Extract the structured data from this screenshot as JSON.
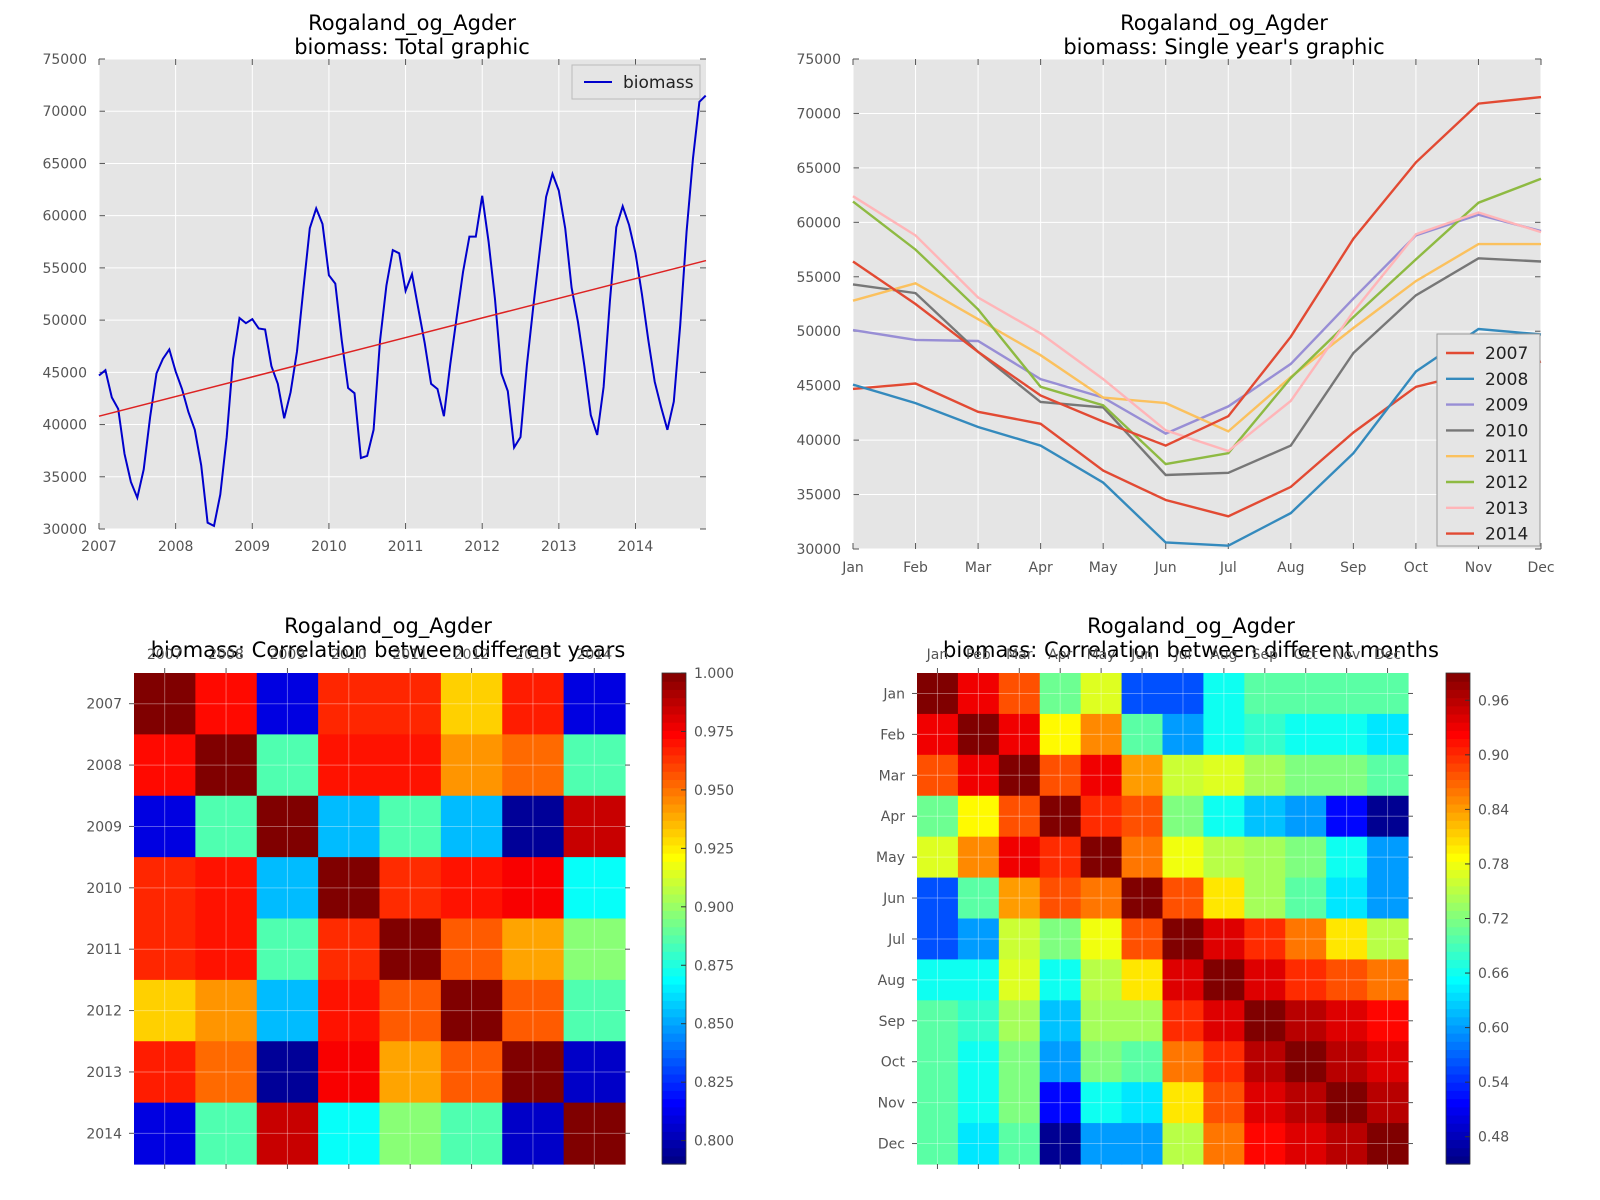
{
  "chart_data": [
    {
      "type": "line",
      "title": "Rogaland_og_Agder",
      "subtitle": "biomass: Total graphic",
      "xlim": [
        2007,
        2014.92
      ],
      "ylim": [
        30000,
        75000
      ],
      "x_ticks": [
        "2007",
        "2008",
        "2009",
        "2010",
        "2011",
        "2012",
        "2013",
        "2014"
      ],
      "y_ticks": [
        "30000",
        "35000",
        "40000",
        "45000",
        "50000",
        "55000",
        "60000",
        "65000",
        "70000",
        "75000"
      ],
      "grid": true,
      "legend_position": "top-right",
      "series": [
        {
          "name": "biomass",
          "color": "#0000cc",
          "x_start": 2007,
          "x_step_months": 1,
          "values": [
            44700,
            45200,
            42600,
            41500,
            37200,
            34500,
            33000,
            35700,
            40700,
            44900,
            46300,
            47200,
            45100,
            43400,
            41200,
            39500,
            36100,
            30600,
            30300,
            33300,
            38800,
            46300,
            50200,
            49700,
            50100,
            49200,
            49100,
            45600,
            43900,
            40600,
            43100,
            47000,
            53000,
            58800,
            60700,
            59200,
            54300,
            53500,
            48100,
            43500,
            43000,
            36800,
            37000,
            39500,
            48000,
            53300,
            56700,
            56400,
            52800,
            54400,
            51100,
            47800,
            43900,
            43400,
            40800,
            45800,
            50300,
            54600,
            58000,
            58000,
            61900,
            57500,
            52000,
            44900,
            43200,
            37800,
            38800,
            45700,
            51300,
            56600,
            61800,
            64000,
            62400,
            58800,
            53100,
            49800,
            45600,
            40900,
            39000,
            43600,
            51800,
            58900,
            60900,
            59100,
            56400,
            52500,
            48100,
            44100,
            41700,
            39500,
            42200,
            49500,
            58500,
            65500,
            70900,
            71500
          ]
        },
        {
          "name": "trend",
          "color": "#dd2222",
          "start": 40800,
          "end": 55700
        }
      ]
    },
    {
      "type": "line",
      "title": "Rogaland_og_Agder",
      "subtitle": "biomass: Single year's graphic",
      "categories": [
        "Jan",
        "Feb",
        "Mar",
        "Apr",
        "May",
        "Jun",
        "Jul",
        "Aug",
        "Sep",
        "Oct",
        "Nov",
        "Dec"
      ],
      "ylim": [
        30000,
        75000
      ],
      "y_ticks": [
        "30000",
        "35000",
        "40000",
        "45000",
        "50000",
        "55000",
        "60000",
        "65000",
        "70000",
        "75000"
      ],
      "grid": true,
      "legend_position": "bottom-right",
      "series": [
        {
          "name": "2007",
          "color": "#e24a33",
          "values": [
            44700,
            45200,
            42600,
            41500,
            37200,
            34500,
            33000,
            35700,
            40700,
            44900,
            46300,
            47200
          ]
        },
        {
          "name": "2008",
          "color": "#348abd",
          "values": [
            45100,
            43400,
            41200,
            39500,
            36100,
            30600,
            30300,
            33300,
            38800,
            46300,
            50200,
            49700
          ]
        },
        {
          "name": "2009",
          "color": "#988ed5",
          "values": [
            50100,
            49200,
            49100,
            45600,
            43900,
            40600,
            43100,
            47000,
            53000,
            58800,
            60700,
            59200
          ]
        },
        {
          "name": "2010",
          "color": "#777777",
          "values": [
            54300,
            53500,
            48100,
            43500,
            43000,
            36800,
            37000,
            39500,
            48000,
            53300,
            56700,
            56400
          ]
        },
        {
          "name": "2011",
          "color": "#fbc15e",
          "values": [
            52800,
            54400,
            51100,
            47800,
            43900,
            43400,
            40800,
            45800,
            50300,
            54600,
            58000,
            58000
          ]
        },
        {
          "name": "2012",
          "color": "#8eba42",
          "values": [
            61900,
            57500,
            52000,
            44900,
            43200,
            37800,
            38800,
            45700,
            51300,
            56600,
            61800,
            64000
          ]
        },
        {
          "name": "2013",
          "color": "#ffb5b8",
          "values": [
            62400,
            58800,
            53100,
            49800,
            45600,
            40900,
            39000,
            43600,
            51800,
            58900,
            60900,
            59100
          ]
        },
        {
          "name": "2014",
          "color": "#e24a33",
          "values": [
            56400,
            52500,
            48100,
            44100,
            41700,
            39500,
            42200,
            49500,
            58500,
            65500,
            70900,
            71500
          ]
        }
      ]
    },
    {
      "type": "heatmap",
      "title": "Rogaland_og_Agder",
      "subtitle": "biomass: Correlation between different years",
      "labels": [
        "2007",
        "2008",
        "2009",
        "2010",
        "2011",
        "2012",
        "2013",
        "2014"
      ],
      "colorbar_range": [
        0.79,
        1.0
      ],
      "colorbar_ticks": [
        "0.800",
        "0.825",
        "0.850",
        "0.875",
        "0.900",
        "0.925",
        "0.950",
        "0.975",
        "1.000"
      ],
      "matrix": [
        [
          1.0,
          0.972,
          0.81,
          0.966,
          0.966,
          0.931,
          0.968,
          0.81
        ],
        [
          0.972,
          1.0,
          0.885,
          0.97,
          0.97,
          0.943,
          0.952,
          0.885
        ],
        [
          0.81,
          0.885,
          1.0,
          0.855,
          0.885,
          0.855,
          0.795,
          0.985
        ],
        [
          0.966,
          0.97,
          0.855,
          1.0,
          0.965,
          0.97,
          0.975,
          0.87
        ],
        [
          0.966,
          0.97,
          0.885,
          0.965,
          1.0,
          0.955,
          0.94,
          0.897
        ],
        [
          0.931,
          0.943,
          0.855,
          0.97,
          0.955,
          1.0,
          0.955,
          0.885
        ],
        [
          0.968,
          0.952,
          0.795,
          0.975,
          0.94,
          0.955,
          1.0,
          0.805
        ],
        [
          0.81,
          0.885,
          0.985,
          0.87,
          0.897,
          0.885,
          0.805,
          1.0
        ]
      ]
    },
    {
      "type": "heatmap",
      "title": "Rogaland_og_Agder",
      "subtitle": "biomass: Correlation between different months",
      "labels": [
        "Jan",
        "Feb",
        "Mar",
        "Apr",
        "May",
        "Jun",
        "Jul",
        "Aug",
        "Sep",
        "Oct",
        "Nov",
        "Dec"
      ],
      "colorbar_range": [
        0.45,
        0.99
      ],
      "colorbar_ticks": [
        "0.48",
        "0.54",
        "0.60",
        "0.66",
        "0.72",
        "0.78",
        "0.84",
        "0.90",
        "0.96"
      ],
      "matrix": [
        [
          0.99,
          0.93,
          0.88,
          0.71,
          0.77,
          0.56,
          0.56,
          0.66,
          0.7,
          0.7,
          0.7,
          0.7
        ],
        [
          0.93,
          0.99,
          0.93,
          0.79,
          0.85,
          0.7,
          0.6,
          0.66,
          0.68,
          0.66,
          0.66,
          0.64
        ],
        [
          0.88,
          0.93,
          0.99,
          0.88,
          0.93,
          0.84,
          0.76,
          0.77,
          0.74,
          0.72,
          0.72,
          0.7
        ],
        [
          0.71,
          0.79,
          0.88,
          0.99,
          0.9,
          0.88,
          0.72,
          0.66,
          0.62,
          0.6,
          0.52,
          0.46
        ],
        [
          0.77,
          0.85,
          0.93,
          0.9,
          0.99,
          0.86,
          0.78,
          0.75,
          0.74,
          0.72,
          0.66,
          0.6
        ],
        [
          0.56,
          0.7,
          0.84,
          0.88,
          0.86,
          0.99,
          0.88,
          0.8,
          0.74,
          0.7,
          0.64,
          0.6
        ],
        [
          0.56,
          0.6,
          0.76,
          0.72,
          0.78,
          0.88,
          0.99,
          0.94,
          0.9,
          0.86,
          0.8,
          0.75
        ],
        [
          0.66,
          0.66,
          0.77,
          0.66,
          0.75,
          0.8,
          0.94,
          0.99,
          0.94,
          0.9,
          0.88,
          0.86
        ],
        [
          0.7,
          0.68,
          0.74,
          0.62,
          0.74,
          0.74,
          0.9,
          0.94,
          0.99,
          0.96,
          0.94,
          0.92
        ],
        [
          0.7,
          0.66,
          0.72,
          0.6,
          0.72,
          0.7,
          0.86,
          0.9,
          0.96,
          0.99,
          0.96,
          0.94
        ],
        [
          0.7,
          0.66,
          0.72,
          0.52,
          0.66,
          0.64,
          0.8,
          0.88,
          0.94,
          0.96,
          0.99,
          0.96
        ],
        [
          0.7,
          0.64,
          0.7,
          0.46,
          0.6,
          0.6,
          0.75,
          0.86,
          0.92,
          0.94,
          0.96,
          0.99
        ]
      ]
    }
  ]
}
